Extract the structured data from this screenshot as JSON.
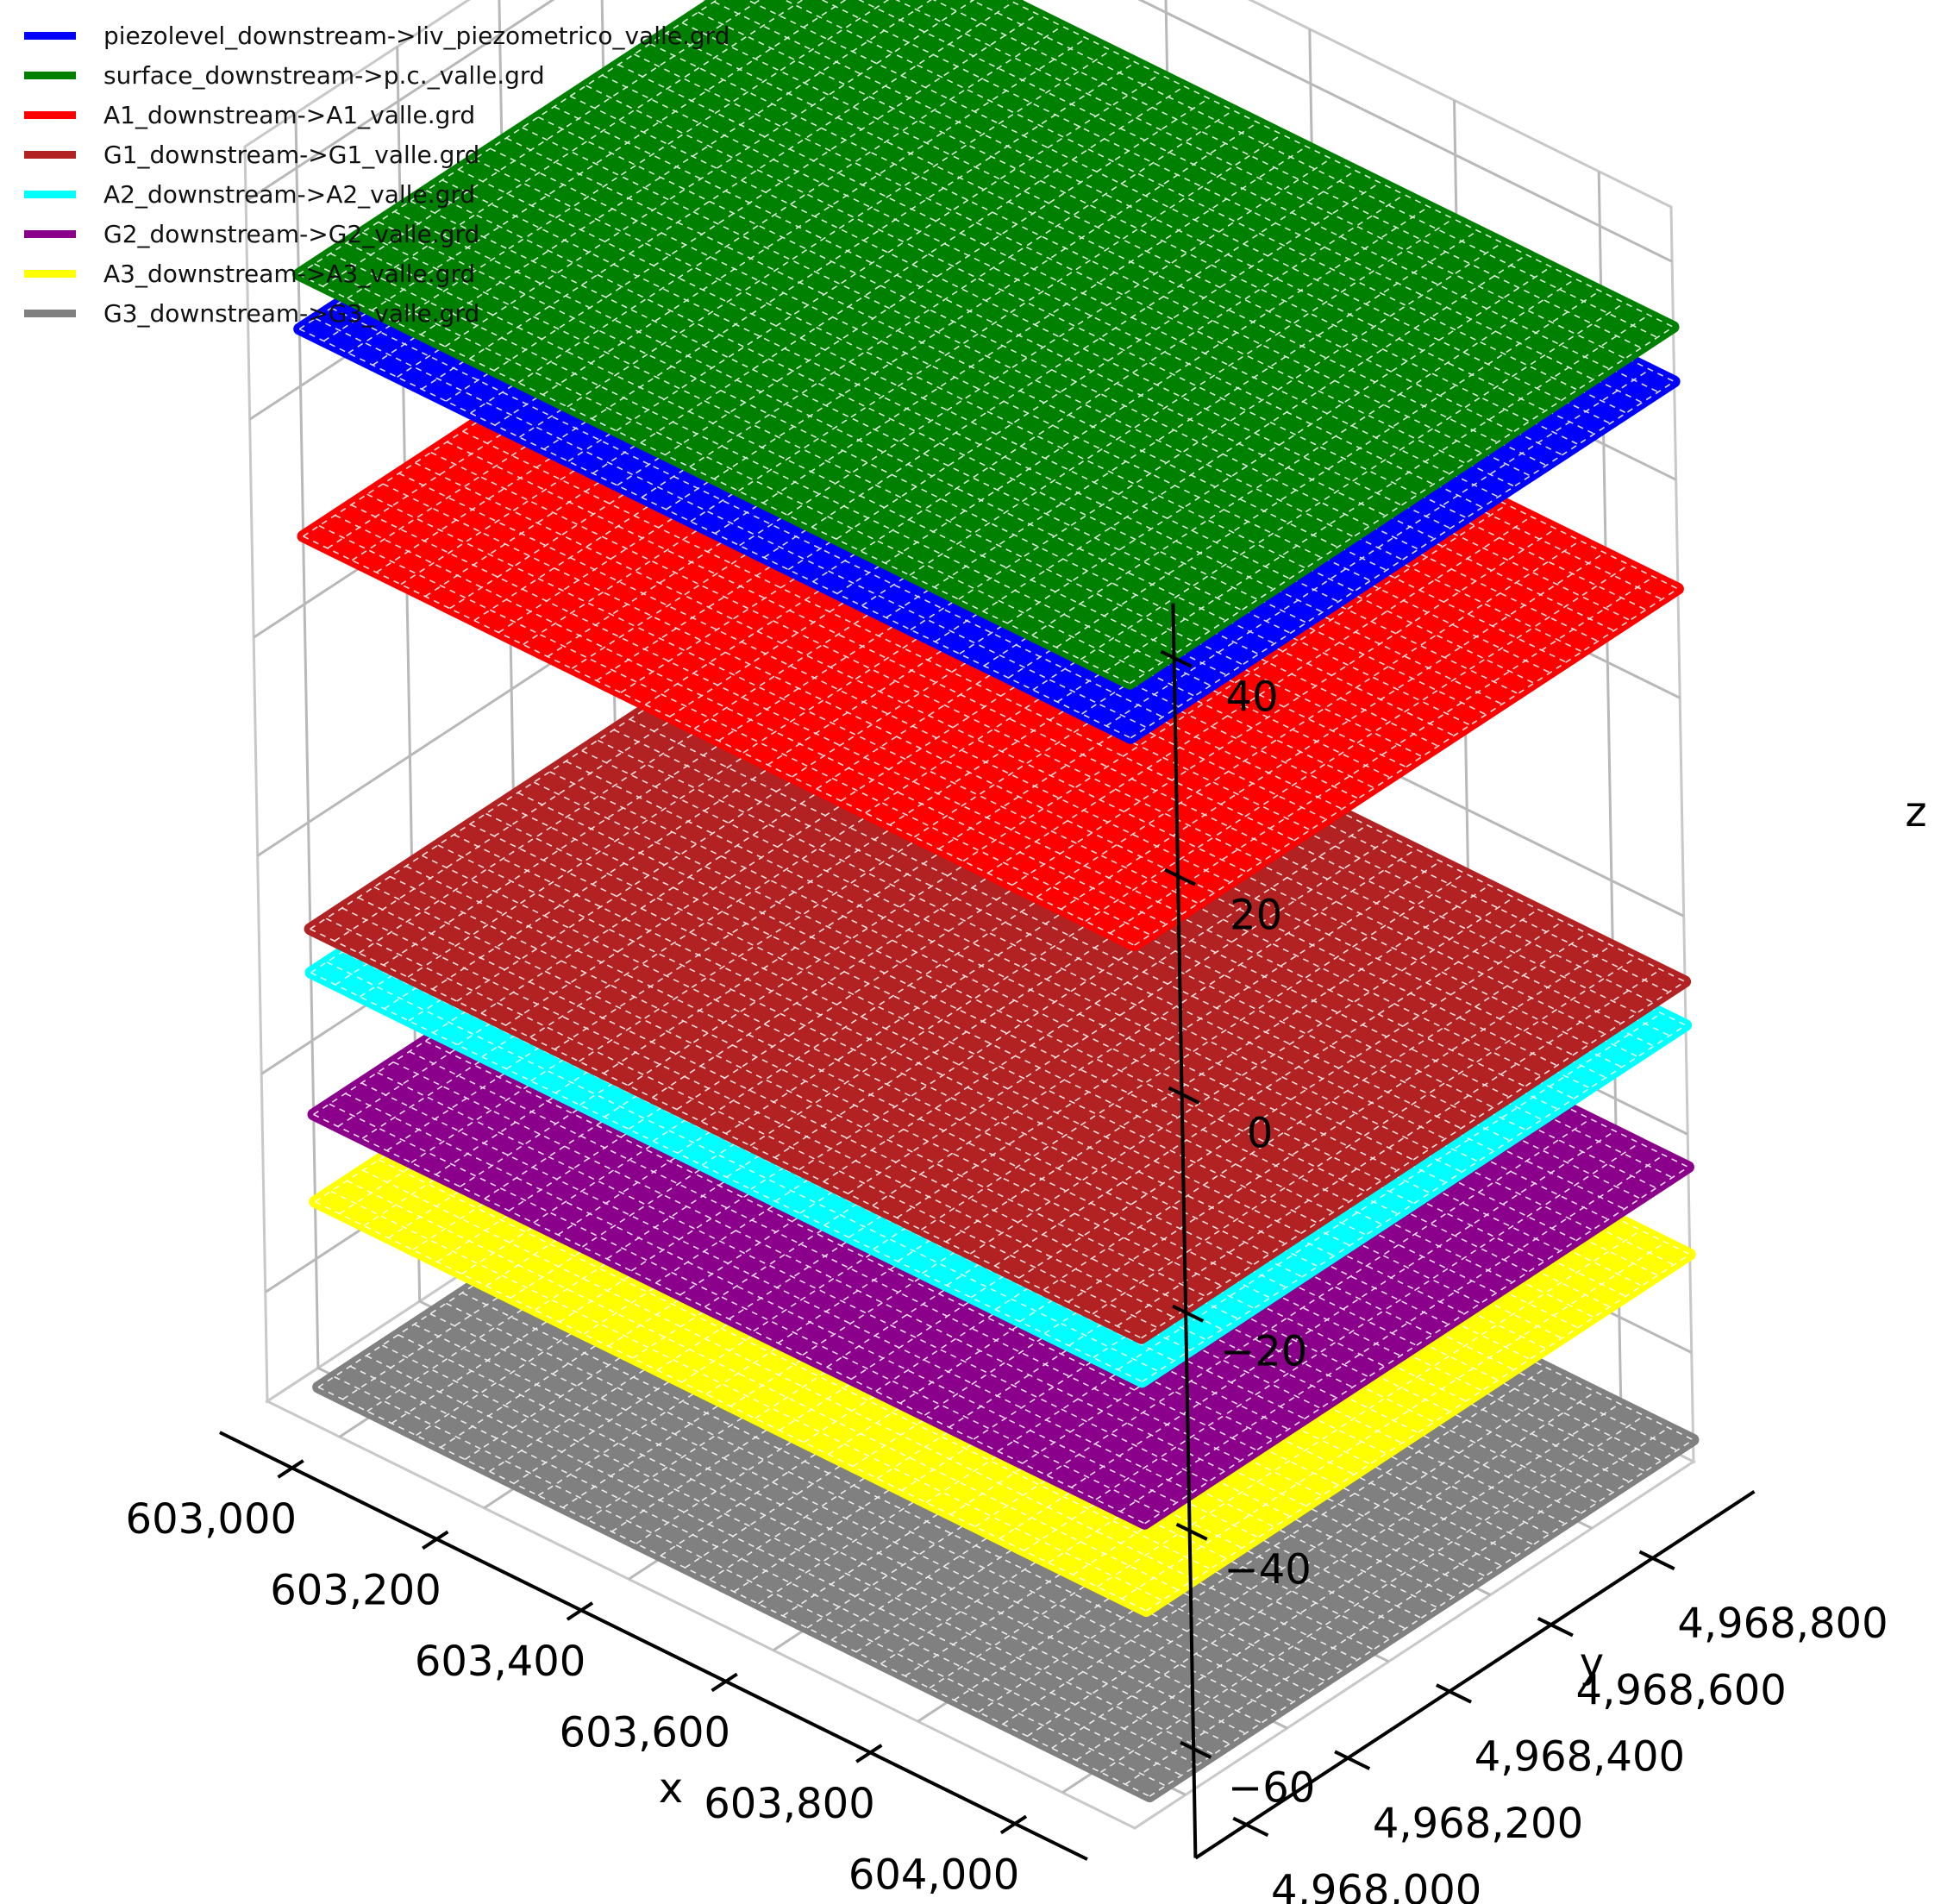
{
  "chart_data": {
    "type": "surface3d",
    "xlabel": "x",
    "ylabel": "y",
    "zlabel": "z",
    "xlim": [
      602900,
      604100
    ],
    "ylim": [
      4967900,
      4969000
    ],
    "zlim": [
      -70,
      45
    ],
    "x_ticks": [
      "603,000",
      "603,200",
      "603,400",
      "603,600",
      "603,800",
      "604,000"
    ],
    "x_tick_values": [
      603000,
      603200,
      603400,
      603600,
      603800,
      604000
    ],
    "y_ticks": [
      "4,968,000",
      "4,968,200",
      "4,968,400",
      "4,968,600",
      "4,968,800"
    ],
    "y_tick_values": [
      4968000,
      4968200,
      4968400,
      4968600,
      4968800
    ],
    "z_ticks": [
      "40",
      "20",
      "0",
      "−20",
      "−40",
      "−60"
    ],
    "z_tick_values": [
      40,
      20,
      0,
      -20,
      -40,
      -60
    ],
    "grid": true,
    "legend_position": "top-left",
    "surface_extent": {
      "x": [
        602950,
        604100
      ],
      "y": [
        4967930,
        4969000
      ]
    },
    "series": [
      {
        "name": "piezolevel_downstream->liv_piezometrico_valle.grd",
        "color": "#0000ff",
        "z": 29
      },
      {
        "name": "surface_downstream->p.c._valle.grd",
        "color": "#008000",
        "z": 34
      },
      {
        "name": "A1_downstream->A1_valle.grd",
        "color": "#ff0000",
        "z": 10
      },
      {
        "name": "G1_downstream->G1_valle.grd",
        "color": "#b22222",
        "z": -26
      },
      {
        "name": "A2_downstream->A2_valle.grd",
        "color": "#00ffff",
        "z": -30
      },
      {
        "name": "G2_downstream->G2_valle.grd",
        "color": "#8b008b",
        "z": -43
      },
      {
        "name": "A3_downstream->A3_valle.grd",
        "color": "#ffff00",
        "z": -51
      },
      {
        "name": "G3_downstream->G3_valle.grd",
        "color": "#808080",
        "z": -68
      }
    ]
  }
}
